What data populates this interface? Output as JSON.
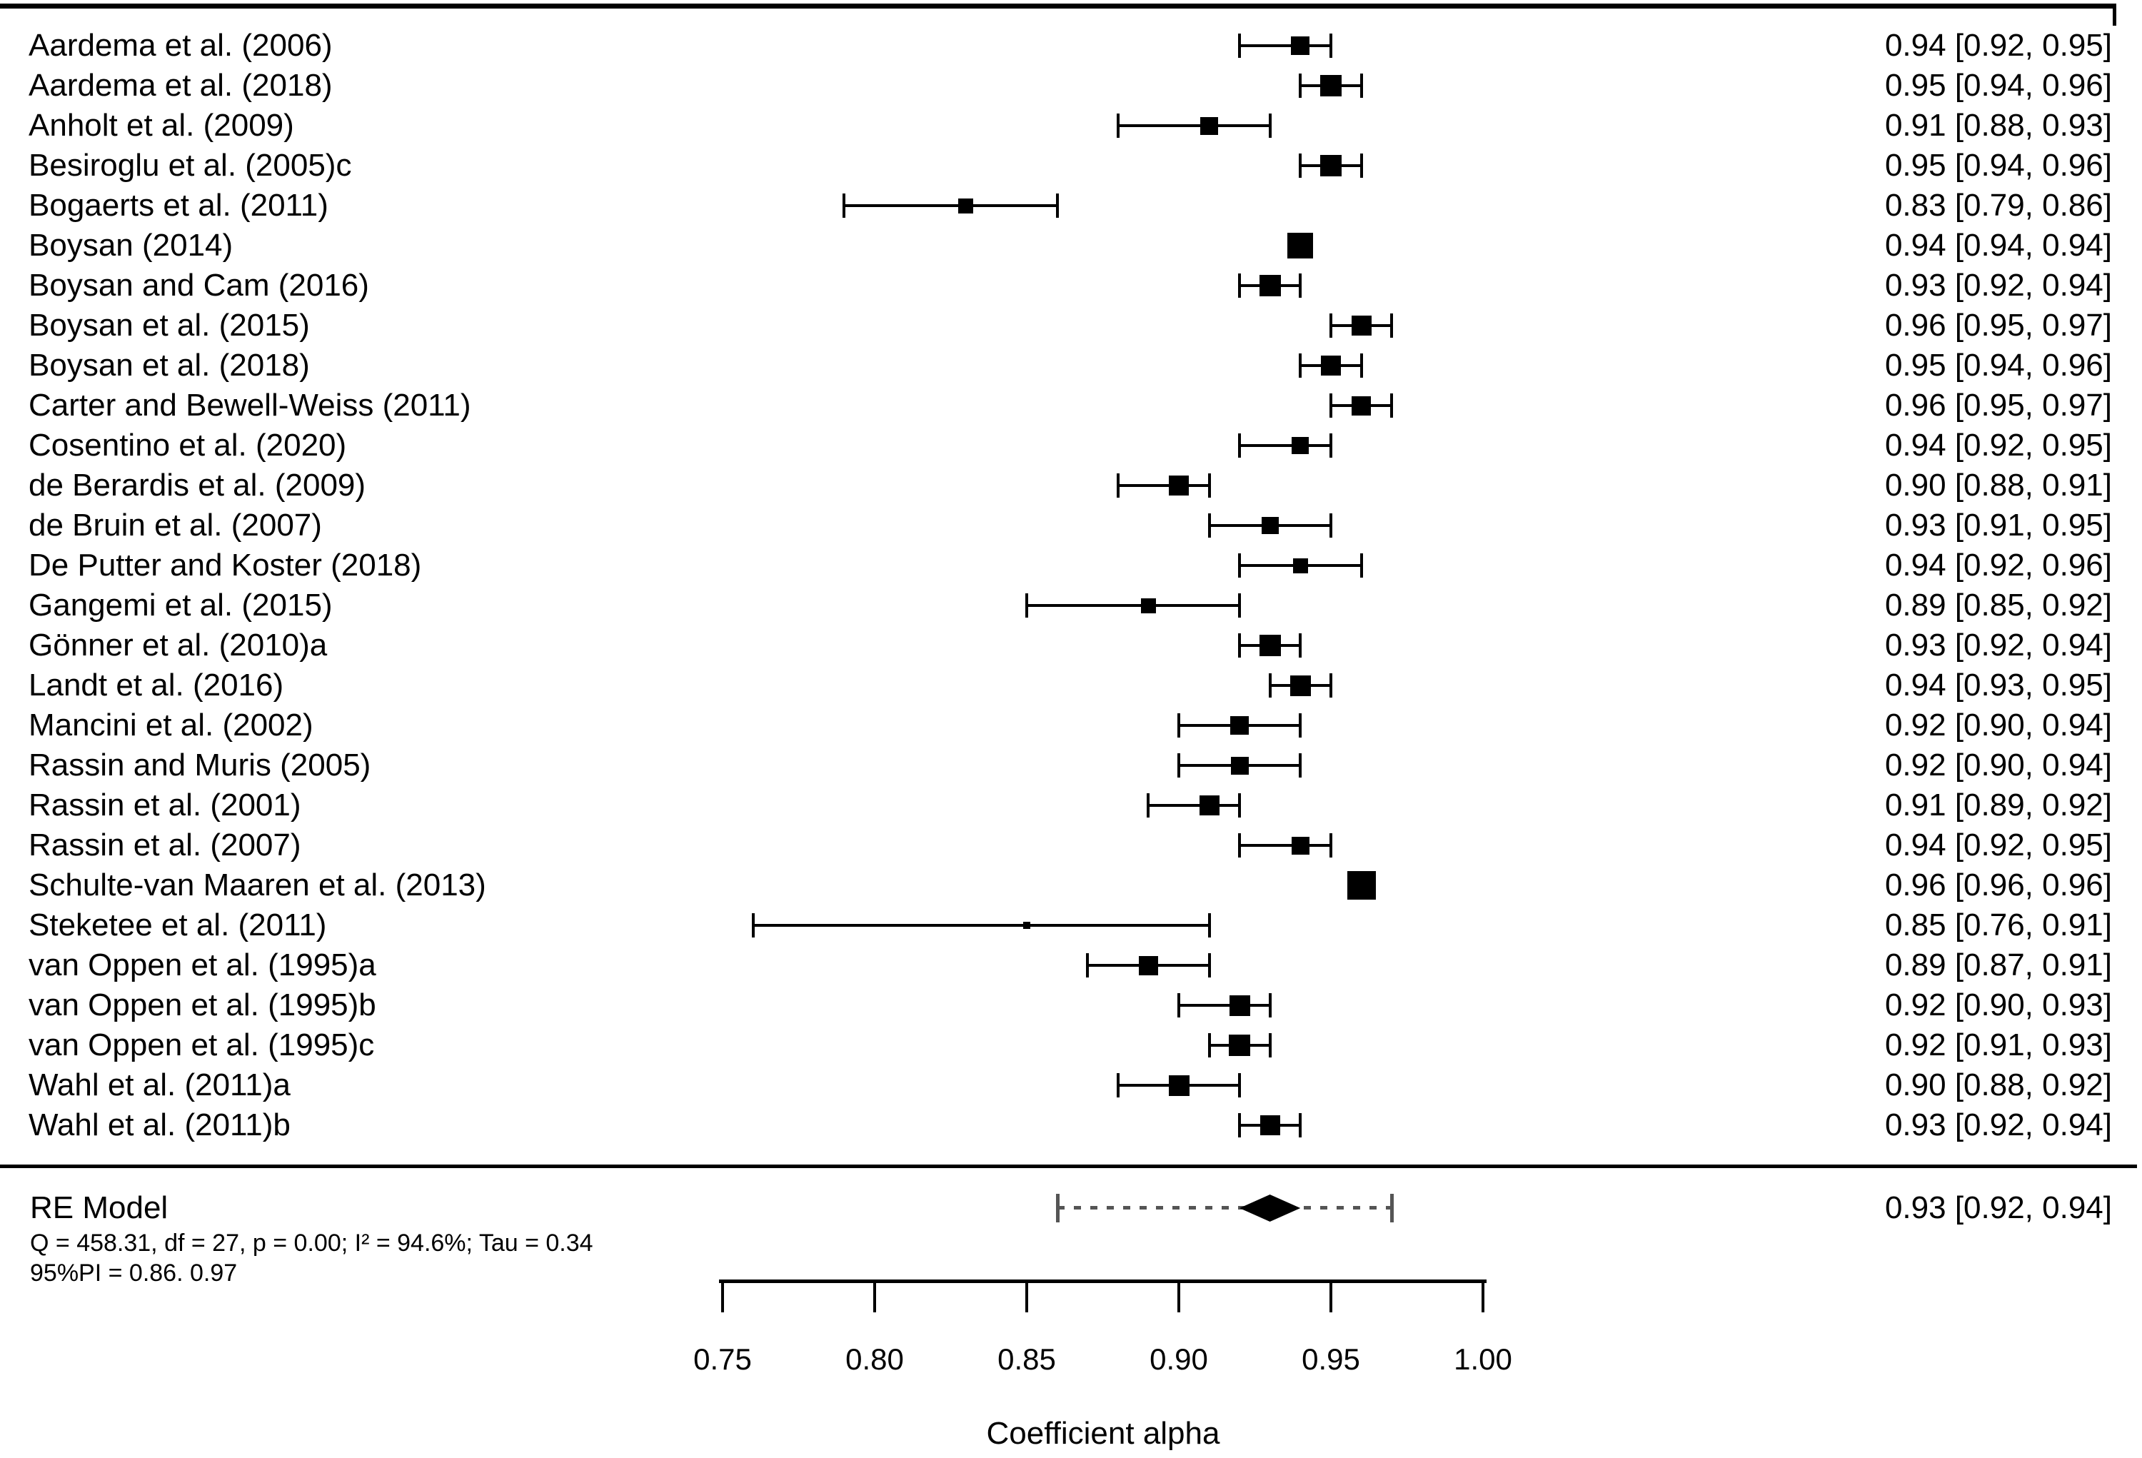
{
  "figure": {
    "background": "#ffffff",
    "foreground": "#000000",
    "prediction_interval_color": "#555555"
  },
  "chart_data": {
    "type": "scatter",
    "subtype": "forest-plot",
    "title": "",
    "xlabel": "Coefficient alpha",
    "xlim": [
      0.75,
      1.0
    ],
    "grid": false,
    "x_ticks": [
      0.75,
      0.8,
      0.85,
      0.9,
      0.95,
      1.0
    ],
    "x_tick_labels": [
      "0.75",
      "0.80",
      "0.85",
      "0.90",
      "0.95",
      "1.00"
    ],
    "studies": [
      {
        "label": "Aardema et al. (2006)",
        "estimate": 0.94,
        "ci_lower": 0.92,
        "ci_upper": 0.95,
        "display": "0.94 [0.92, 0.95]",
        "marker_size": 26
      },
      {
        "label": "Aardema et al. (2018)",
        "estimate": 0.95,
        "ci_lower": 0.94,
        "ci_upper": 0.96,
        "display": "0.95 [0.94, 0.96]",
        "marker_size": 30
      },
      {
        "label": "Anholt et al. (2009)",
        "estimate": 0.91,
        "ci_lower": 0.88,
        "ci_upper": 0.93,
        "display": "0.91 [0.88, 0.93]",
        "marker_size": 25
      },
      {
        "label": "Besiroglu et al. (2005)c",
        "estimate": 0.95,
        "ci_lower": 0.94,
        "ci_upper": 0.96,
        "display": "0.95 [0.94, 0.96]",
        "marker_size": 30
      },
      {
        "label": "Bogaerts et al. (2011)",
        "estimate": 0.83,
        "ci_lower": 0.79,
        "ci_upper": 0.86,
        "display": "0.83 [0.79, 0.86]",
        "marker_size": 21
      },
      {
        "label": "Boysan (2014)",
        "estimate": 0.94,
        "ci_lower": 0.94,
        "ci_upper": 0.94,
        "display": "0.94 [0.94, 0.94]",
        "marker_size": 36
      },
      {
        "label": "Boysan and Cam (2016)",
        "estimate": 0.93,
        "ci_lower": 0.92,
        "ci_upper": 0.94,
        "display": "0.93 [0.92, 0.94]",
        "marker_size": 30
      },
      {
        "label": "Boysan et al. (2015)",
        "estimate": 0.96,
        "ci_lower": 0.95,
        "ci_upper": 0.97,
        "display": "0.96 [0.95, 0.97]",
        "marker_size": 28
      },
      {
        "label": "Boysan et al. (2018)",
        "estimate": 0.95,
        "ci_lower": 0.94,
        "ci_upper": 0.96,
        "display": "0.95 [0.94, 0.96]",
        "marker_size": 28
      },
      {
        "label": "Carter and Bewell-Weiss (2011)",
        "estimate": 0.96,
        "ci_lower": 0.95,
        "ci_upper": 0.97,
        "display": "0.96 [0.95, 0.97]",
        "marker_size": 27
      },
      {
        "label": "Cosentino et al. (2020)",
        "estimate": 0.94,
        "ci_lower": 0.92,
        "ci_upper": 0.95,
        "display": "0.94 [0.92, 0.95]",
        "marker_size": 24
      },
      {
        "label": "de Berardis et al. (2009)",
        "estimate": 0.9,
        "ci_lower": 0.88,
        "ci_upper": 0.91,
        "display": "0.90 [0.88, 0.91]",
        "marker_size": 28
      },
      {
        "label": "de Bruin et al. (2007)",
        "estimate": 0.93,
        "ci_lower": 0.91,
        "ci_upper": 0.95,
        "display": "0.93 [0.91, 0.95]",
        "marker_size": 24
      },
      {
        "label": "De Putter and Koster (2018)",
        "estimate": 0.94,
        "ci_lower": 0.92,
        "ci_upper": 0.96,
        "display": "0.94 [0.92, 0.96]",
        "marker_size": 21
      },
      {
        "label": "Gangemi et al. (2015)",
        "estimate": 0.89,
        "ci_lower": 0.85,
        "ci_upper": 0.92,
        "display": "0.89 [0.85, 0.92]",
        "marker_size": 21
      },
      {
        "label": "Gönner et al. (2010)a",
        "estimate": 0.93,
        "ci_lower": 0.92,
        "ci_upper": 0.94,
        "display": "0.93 [0.92, 0.94]",
        "marker_size": 30
      },
      {
        "label": "Landt et al. (2016)",
        "estimate": 0.94,
        "ci_lower": 0.93,
        "ci_upper": 0.95,
        "display": "0.94 [0.93, 0.95]",
        "marker_size": 29
      },
      {
        "label": "Mancini et al. (2002)",
        "estimate": 0.92,
        "ci_lower": 0.9,
        "ci_upper": 0.94,
        "display": "0.92 [0.90, 0.94]",
        "marker_size": 26
      },
      {
        "label": "Rassin and Muris (2005)",
        "estimate": 0.92,
        "ci_lower": 0.9,
        "ci_upper": 0.94,
        "display": "0.92 [0.90, 0.94]",
        "marker_size": 25
      },
      {
        "label": "Rassin et al. (2001)",
        "estimate": 0.91,
        "ci_lower": 0.89,
        "ci_upper": 0.92,
        "display": "0.91 [0.89, 0.92]",
        "marker_size": 28
      },
      {
        "label": "Rassin et al. (2007)",
        "estimate": 0.94,
        "ci_lower": 0.92,
        "ci_upper": 0.95,
        "display": "0.94 [0.92, 0.95]",
        "marker_size": 25
      },
      {
        "label": "Schulte-van Maaren et al. (2013)",
        "estimate": 0.96,
        "ci_lower": 0.96,
        "ci_upper": 0.96,
        "display": "0.96 [0.96, 0.96]",
        "marker_size": 40
      },
      {
        "label": "Steketee et al. (2011)",
        "estimate": 0.85,
        "ci_lower": 0.76,
        "ci_upper": 0.91,
        "display": "0.85 [0.76, 0.91]",
        "marker_size": 10
      },
      {
        "label": "van Oppen et al. (1995)a",
        "estimate": 0.89,
        "ci_lower": 0.87,
        "ci_upper": 0.91,
        "display": "0.89 [0.87, 0.91]",
        "marker_size": 27
      },
      {
        "label": "van Oppen et al. (1995)b",
        "estimate": 0.92,
        "ci_lower": 0.9,
        "ci_upper": 0.93,
        "display": "0.92 [0.90, 0.93]",
        "marker_size": 29
      },
      {
        "label": "van Oppen et al. (1995)c",
        "estimate": 0.92,
        "ci_lower": 0.91,
        "ci_upper": 0.93,
        "display": "0.92 [0.91, 0.93]",
        "marker_size": 30
      },
      {
        "label": "Wahl et al. (2011)a",
        "estimate": 0.9,
        "ci_lower": 0.88,
        "ci_upper": 0.92,
        "display": "0.90 [0.88, 0.92]",
        "marker_size": 29
      },
      {
        "label": "Wahl et al. (2011)b",
        "estimate": 0.93,
        "ci_lower": 0.92,
        "ci_upper": 0.94,
        "display": "0.93 [0.92, 0.94]",
        "marker_size": 28
      }
    ],
    "summary": {
      "label": "RE Model",
      "estimate": 0.93,
      "ci_lower": 0.92,
      "ci_upper": 0.94,
      "display": "0.93 [0.92, 0.94]",
      "prediction_interval": [
        0.86,
        0.97
      ],
      "heterogeneity_text": "Q = 458.31, df = 27, p = 0.00; I² = 94.6%; Tau = 0.34",
      "pi_text": "95%PI = 0.86. 0.97"
    }
  }
}
